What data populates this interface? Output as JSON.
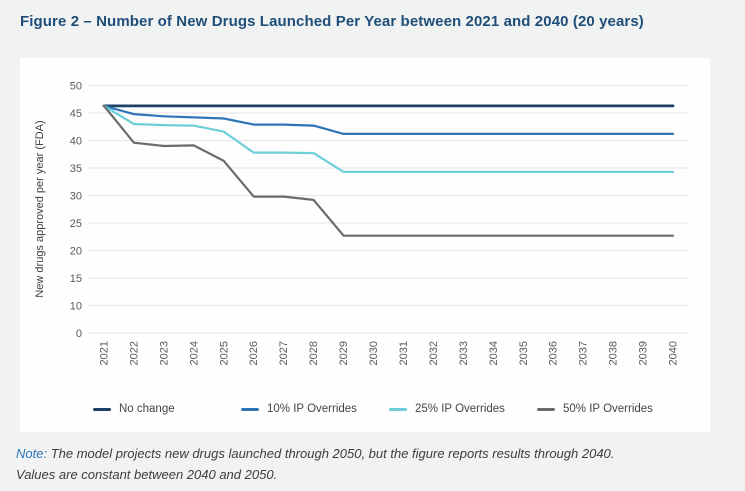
{
  "figure": {
    "title": "Figure 2 – Number of New Drugs Launched Per Year between 2021 and 2040 (20 years)",
    "title_color": "#1f4e79"
  },
  "note": {
    "label": "Note:",
    "line1": "The model projects new drugs launched through 2050, but the figure reports results through 2040.",
    "line2": "Values are constant between 2040 and 2050."
  },
  "chart_data": {
    "type": "line",
    "title": "",
    "xlabel": "",
    "ylabel": "New drugs approved per year (FDA)",
    "x": [
      2021,
      2022,
      2023,
      2024,
      2025,
      2026,
      2027,
      2028,
      2029,
      2030,
      2031,
      2032,
      2033,
      2034,
      2035,
      2036,
      2037,
      2038,
      2039,
      2040
    ],
    "y_tick_labels": [
      50,
      45,
      40,
      35,
      30,
      25,
      20,
      15,
      10,
      0
    ],
    "ylim": [
      0,
      50
    ],
    "grid": true,
    "legend_position": "bottom",
    "series": [
      {
        "name": "No change",
        "color": "#1e4066",
        "stroke_width": 2.8,
        "values": [
          46.3,
          46.3,
          46.3,
          46.3,
          46.3,
          46.3,
          46.3,
          46.3,
          46.3,
          46.3,
          46.3,
          46.3,
          46.3,
          46.3,
          46.3,
          46.3,
          46.3,
          46.3,
          46.3,
          46.3
        ]
      },
      {
        "name": "10% IP Overrides",
        "color": "#2e75b6",
        "stroke_width": 2.2,
        "values": [
          46.3,
          44.8,
          44.4,
          44.2,
          44.0,
          42.9,
          42.9,
          42.7,
          41.2,
          41.2,
          41.2,
          41.2,
          41.2,
          41.2,
          41.2,
          41.2,
          41.2,
          41.2,
          41.2,
          41.2
        ]
      },
      {
        "name": "25% IP Overrides",
        "color": "#6ecfd8",
        "stroke_width": 2.2,
        "values": [
          46.3,
          43.0,
          42.8,
          42.7,
          41.6,
          37.8,
          37.8,
          37.7,
          34.3,
          34.3,
          34.3,
          34.3,
          34.3,
          34.3,
          34.3,
          34.3,
          34.3,
          34.3,
          34.3,
          34.3
        ]
      },
      {
        "name": "50% IP Overrides",
        "color": "#6b6b6b",
        "stroke_width": 2.2,
        "values": [
          46.3,
          39.6,
          39.0,
          39.1,
          36.3,
          29.8,
          29.8,
          29.2,
          22.7,
          22.7,
          22.7,
          22.7,
          22.7,
          22.7,
          22.7,
          22.7,
          22.7,
          22.7,
          22.7,
          22.7
        ]
      }
    ],
    "colors": {
      "gridline": "#e9e9e9",
      "tick_text": "#595959",
      "axis_title_text": "#3f3f3f"
    }
  }
}
